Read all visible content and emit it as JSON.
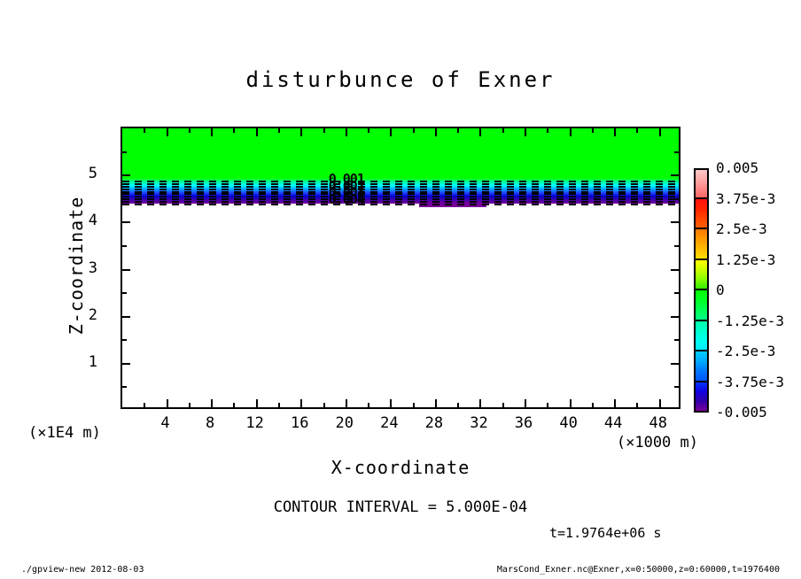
{
  "title": "disturbunce of Exner",
  "footer": {
    "left": "./gpview-new  2012-08-03",
    "right": "MarsCond_Exner.nc@Exner,x=0:50000,z=0:60000,t=1976400"
  },
  "chart_data": {
    "type": "heatmap",
    "title": "disturbunce of Exner",
    "xlabel": "X-coordinate",
    "x_unit_label": "(×1000 m)",
    "ylabel": "Z-coordinate",
    "y_unit_label": "(×1E4 m)",
    "xlim": [
      0,
      50
    ],
    "ylim": [
      0,
      6
    ],
    "x_major_ticks": [
      4,
      8,
      12,
      16,
      20,
      24,
      28,
      32,
      36,
      40,
      44,
      48
    ],
    "x_minor_ticks": [
      2,
      6,
      10,
      14,
      18,
      22,
      26,
      30,
      34,
      38,
      42,
      46
    ],
    "y_major_ticks": [
      1,
      2,
      3,
      4,
      5
    ],
    "y_minor_ticks": [
      0.5,
      1.5,
      2.5,
      3.5,
      4.5,
      5.5
    ],
    "contour_interval_text": "CONTOUR INTERVAL = 5.000E-04",
    "time_text": "t=1.9764e+06 s",
    "field": {
      "description": "Exner disturbance: value 0 (green) above z~4.9; sharp negative gradient band 0 to -0.005 between z~4.93 and z~4.35 (x1E4 m); white (out of range) below band",
      "zero_region_value": 0,
      "band_z_top": 4.93,
      "band_z_bottom": 4.38,
      "band_value_top": 0,
      "band_value_bottom": -0.005,
      "n_dashed_contours": 10,
      "band_colors": [
        "#00ff00",
        "#00ff99",
        "#00ffff",
        "#00aaff",
        "#2244ff",
        "#0000cc",
        "#4400aa",
        "#770099"
      ],
      "purple_step_x_range": [
        26.5,
        32.5
      ]
    },
    "contour_labels": [
      {
        "text": "0.001",
        "x": 20,
        "z": 4.9
      },
      {
        "text": "0.002",
        "x": 20,
        "z": 4.76
      },
      {
        "text": "0.003",
        "x": 20,
        "z": 4.62
      },
      {
        "text": "0.004",
        "x": 20,
        "z": 4.48
      }
    ],
    "colorbar": {
      "labels": [
        "0.005",
        "3.75e-3",
        "2.5e-3",
        "1.25e-3",
        "0",
        "-1.25e-3",
        "-2.5e-3",
        "-3.75e-3",
        "-0.005"
      ],
      "cells": [
        {
          "stops": [
            "#ffc8c8",
            "#ffaaaa",
            "#ff8888",
            "#ff6666"
          ]
        },
        {
          "stops": [
            "#ff1111",
            "#ff2200",
            "#ff4400",
            "#ff5e00"
          ]
        },
        {
          "stops": [
            "#ff7700",
            "#ff9900",
            "#ffbb00",
            "#ffdd00"
          ]
        },
        {
          "stops": [
            "#ffff00",
            "#ccff00",
            "#88ff00",
            "#33ee00"
          ]
        },
        {
          "stops": [
            "#00ff00",
            "#00ff22",
            "#00ff55",
            "#00ff88"
          ]
        },
        {
          "stops": [
            "#00ffaa",
            "#00ffcc",
            "#00ffee",
            "#00eeff"
          ]
        },
        {
          "stops": [
            "#00ccff",
            "#00aaff",
            "#0077ff",
            "#0055ff"
          ]
        },
        {
          "stops": [
            "#0033ff",
            "#1100dd",
            "#3300aa",
            "#770099"
          ]
        }
      ]
    }
  }
}
